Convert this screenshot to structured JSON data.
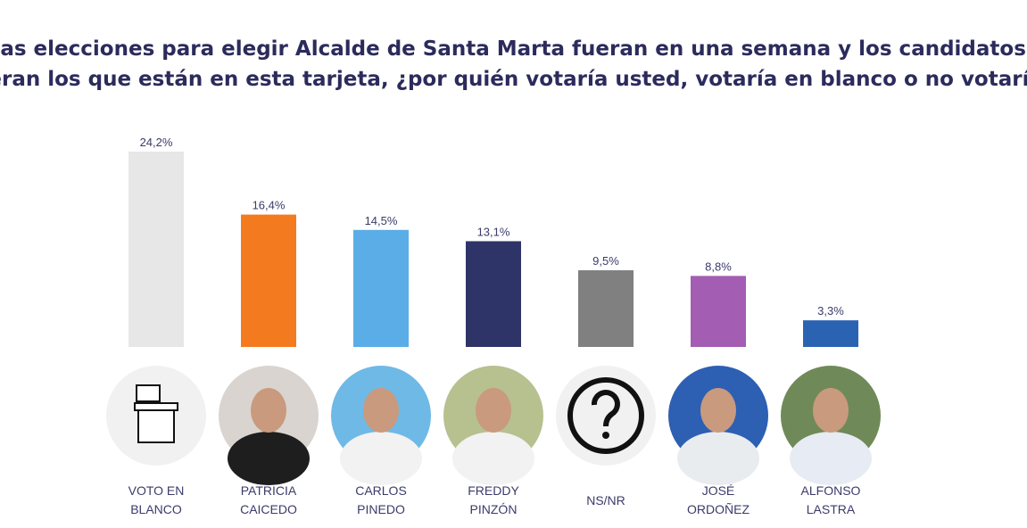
{
  "chart_data": {
    "type": "bar",
    "title": [
      "Si las elecciones para elegir Alcalde de Santa Marta fueran en una semana y los candidatos",
      "fueran los que están en esta tarjeta, ¿por quién votaría usted, votaría en blanco o no votaría?"
    ],
    "categories": [
      "VOTO EN BLANCO",
      "PATRICIA CAICEDO",
      "CARLOS PINEDO",
      "FREDDY PINZÓN",
      "NS/NR",
      "JOSÉ ORDOÑEZ",
      "ALFONSO LASTRA"
    ],
    "values": [
      24.2,
      16.4,
      14.5,
      13.1,
      9.5,
      8.8,
      3.3
    ],
    "value_labels": [
      "24,2%",
      "16,4%",
      "14,5%",
      "13,1%",
      "9,5%",
      "8,8%",
      "3,3%"
    ],
    "colors": [
      "#e6e7e6",
      "#f47a20",
      "#5aade6",
      "#2f3468",
      "#808080",
      "#a35db3",
      "#2b63b3"
    ]
  }
}
